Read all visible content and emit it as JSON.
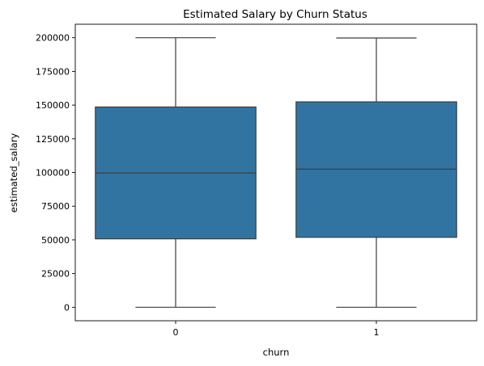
{
  "chart_data": {
    "type": "box",
    "title": "Estimated Salary by Churn Status",
    "xlabel": "churn",
    "ylabel": "estimated_salary",
    "categories": [
      "0",
      "1"
    ],
    "boxes": [
      {
        "category": "0",
        "min": 11.58,
        "q1": 50783.49,
        "median": 99645.04,
        "q3": 148609.96,
        "max": 199992.48
      },
      {
        "category": "1",
        "min": 11.58,
        "q1": 51907.72,
        "median": 102460.84,
        "q3": 152422.91,
        "max": 199808.1
      }
    ],
    "ylim": [
      -10000,
      210000
    ],
    "yticks": [
      0,
      25000,
      50000,
      75000,
      100000,
      125000,
      150000,
      175000,
      200000
    ],
    "grid": false,
    "box_color": "#3274a1",
    "line_color": "#3d3d3d"
  }
}
